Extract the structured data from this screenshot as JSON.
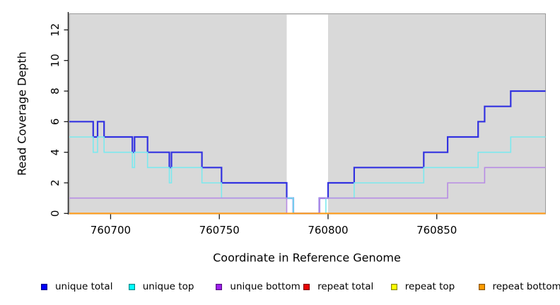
{
  "chart_data": {
    "type": "line",
    "subtype": "step-coverage",
    "title": "",
    "xlabel": "Coordinate in Reference Genome",
    "ylabel": "Read Coverage Depth",
    "xlim": [
      760681,
      760900
    ],
    "ylim": [
      0,
      13
    ],
    "xticks": [
      760700,
      760750,
      760800,
      760850
    ],
    "yticks": [
      0,
      2,
      4,
      6,
      8,
      10,
      12
    ],
    "grid": false,
    "legend_position": "bottom",
    "plot_bg_color": "#d9d9d9",
    "plot_border_color": "#9a9a9a",
    "unshaded_region": {
      "x0": 760781,
      "x1": 760800
    },
    "series": [
      {
        "name": "unique total",
        "color": "#3232e0",
        "width": 2.2,
        "steps": [
          [
            760681,
            6
          ],
          [
            760692,
            5
          ],
          [
            760694,
            6
          ],
          [
            760697,
            5
          ],
          [
            760710,
            4
          ],
          [
            760711,
            5
          ],
          [
            760717,
            4
          ],
          [
            760727,
            3
          ],
          [
            760728,
            4
          ],
          [
            760742,
            3
          ],
          [
            760751,
            2
          ],
          [
            760781,
            1
          ],
          [
            760784,
            0
          ],
          [
            760796,
            1
          ],
          [
            760800,
            2
          ],
          [
            760812,
            3
          ],
          [
            760844,
            4
          ],
          [
            760855,
            5
          ],
          [
            760869,
            6
          ],
          [
            760872,
            7
          ],
          [
            760884,
            8
          ]
        ]
      },
      {
        "name": "unique top",
        "color": "#7ce9ee",
        "width": 1.6,
        "steps": [
          [
            760681,
            5
          ],
          [
            760692,
            4
          ],
          [
            760694,
            5
          ],
          [
            760697,
            4
          ],
          [
            760710,
            3
          ],
          [
            760711,
            4
          ],
          [
            760717,
            3
          ],
          [
            760727,
            2
          ],
          [
            760728,
            3
          ],
          [
            760742,
            2
          ],
          [
            760751,
            1
          ],
          [
            760784,
            0
          ],
          [
            760799,
            1
          ],
          [
            760812,
            2
          ],
          [
            760844,
            3
          ],
          [
            760869,
            4
          ],
          [
            760884,
            5
          ]
        ]
      },
      {
        "name": "unique bottom",
        "color": "#b78ce4",
        "width": 1.6,
        "steps": [
          [
            760681,
            1
          ],
          [
            760781,
            0
          ],
          [
            760796,
            1
          ],
          [
            760855,
            2
          ],
          [
            760872,
            3
          ]
        ]
      },
      {
        "name": "repeat total",
        "color": "#d40000",
        "width": 1.6,
        "steps": [
          [
            760681,
            0
          ]
        ]
      },
      {
        "name": "repeat top",
        "color": "#ffff00",
        "width": 1.6,
        "steps": [
          [
            760681,
            0
          ]
        ]
      },
      {
        "name": "repeat bottom",
        "color": "#ff9d1e",
        "width": 2.0,
        "steps": [
          [
            760681,
            0
          ]
        ]
      }
    ]
  },
  "legend": {
    "items": [
      {
        "label": "unique total",
        "swatch": "#0000ff"
      },
      {
        "label": "unique top",
        "swatch": "#00ffff"
      },
      {
        "label": "unique bottom",
        "swatch": "#a020f0"
      },
      {
        "label": "repeat total",
        "swatch": "#ee0000"
      },
      {
        "label": "repeat top",
        "swatch": "#ffff00"
      },
      {
        "label": "repeat bottom",
        "swatch": "#ff9d00"
      }
    ]
  }
}
